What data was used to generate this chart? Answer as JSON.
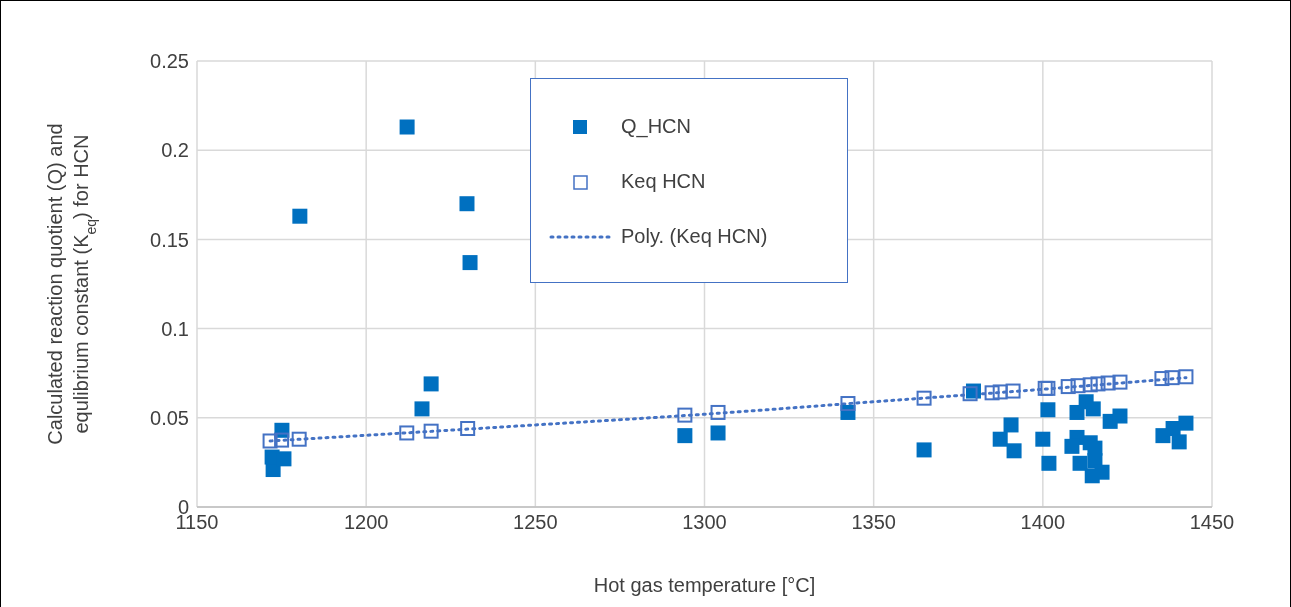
{
  "chart_data": {
    "type": "scatter",
    "xlabel": "Hot gas temperature [°C]",
    "ylabel": "Calculated reaction quotient (Q) and equlibrium constant  (K$_{eq}$) for HCN",
    "xlim": [
      1150,
      1450
    ],
    "xticks": [
      1150,
      1200,
      1250,
      1300,
      1350,
      1400,
      1450
    ],
    "ylim": [
      0,
      0.25
    ],
    "yticks": [
      0,
      0.05,
      0.1,
      0.15,
      0.2,
      0.25
    ],
    "grid": true,
    "legend": "top",
    "marker": "square",
    "series": [
      {
        "name": "Q_HCN",
        "color": "#0070c0",
        "x": [
          1172.5,
          1172.2,
          1175.7,
          1175.1,
          1180.4,
          1212.1,
          1229.8,
          1230.7,
          1219.2,
          1216.5,
          1294.2,
          1304,
          1342.4,
          1364.9,
          1379.5,
          1390.6,
          1387.4,
          1391.5,
          1401.5,
          1400,
          1401.8,
          1410.1,
          1412.8,
          1414.9,
          1410.1,
          1408.6,
          1414,
          1415.4,
          1411,
          1415.4,
          1417.5,
          1414.6,
          1419.9,
          1422.8,
          1435.5,
          1438.5,
          1442.3,
          1440.3
        ],
        "values": [
          0.021,
          0.028,
          0.027,
          0.043,
          0.163,
          0.213,
          0.17,
          0.137,
          0.069,
          0.055,
          0.04,
          0.0415,
          0.053,
          0.032,
          0.065,
          0.046,
          0.038,
          0.0315,
          0.0545,
          0.038,
          0.0245,
          0.053,
          0.059,
          0.055,
          0.039,
          0.034,
          0.036,
          0.033,
          0.0245,
          0.026,
          0.0195,
          0.0175,
          0.048,
          0.051,
          0.04,
          0.044,
          0.047,
          0.0365
        ]
      },
      {
        "name": "Keq HCN",
        "color": "#4472c4",
        "x": [
          1171.6,
          1175,
          1180.2,
          1212,
          1219.2,
          1230,
          1294.2,
          1304,
          1342.4,
          1364.9,
          1378.5,
          1385,
          1387.4,
          1391.2,
          1400.7,
          1401.5,
          1407.5,
          1410.4,
          1414,
          1416.3,
          1419.3,
          1422.8,
          1435.2,
          1438.2,
          1442.3
        ],
        "values": [
          0.037,
          0.0375,
          0.038,
          0.0415,
          0.0425,
          0.044,
          0.0515,
          0.053,
          0.058,
          0.061,
          0.0635,
          0.064,
          0.0645,
          0.065,
          0.0665,
          0.0665,
          0.0675,
          0.068,
          0.0685,
          0.069,
          0.0695,
          0.07,
          0.072,
          0.0725,
          0.073
        ]
      },
      {
        "name": "Poly. (Keq HCN)",
        "type": "line",
        "color": "#4472c4",
        "line_style": "dotted",
        "marker": "none",
        "x": [
          1171.6,
          1200,
          1250,
          1300,
          1350,
          1400,
          1442.3
        ],
        "values": [
          0.037,
          0.0402,
          0.046,
          0.052,
          0.059,
          0.066,
          0.0725
        ]
      }
    ]
  }
}
